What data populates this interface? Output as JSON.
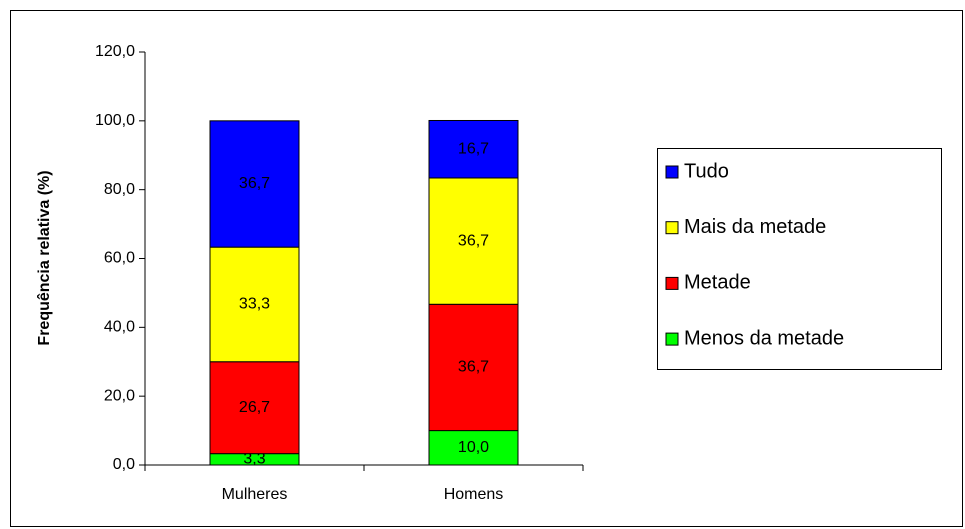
{
  "chart_data": {
    "type": "stacked_bar",
    "y_label": "Frequência relativa (%)",
    "categories": [
      "Mulheres",
      "Homens"
    ],
    "series": [
      {
        "name": "Menos da metade",
        "color": "#00ff00",
        "values": [
          3.3,
          10.0
        ],
        "value_labels": [
          "3,3",
          "10,0"
        ]
      },
      {
        "name": "Metade",
        "color": "#ff0000",
        "values": [
          26.7,
          36.7
        ],
        "value_labels": [
          "26,7",
          "36,7"
        ]
      },
      {
        "name": "Mais da metade",
        "color": "#ffff00",
        "values": [
          33.3,
          36.7
        ],
        "value_labels": [
          "33,3",
          "36,7"
        ]
      },
      {
        "name": "Tudo",
        "color": "#0000ff",
        "values": [
          36.7,
          16.7
        ],
        "value_labels": [
          "36,7",
          "16,7"
        ]
      }
    ],
    "ylim": [
      0,
      120
    ],
    "yticks": [
      {
        "value": 0,
        "label": "0,0"
      },
      {
        "value": 20,
        "label": "20,0"
      },
      {
        "value": 40,
        "label": "40,0"
      },
      {
        "value": 60,
        "label": "60,0"
      },
      {
        "value": 80,
        "label": "80,0"
      },
      {
        "value": 100,
        "label": "100,0"
      },
      {
        "value": 120,
        "label": "120,0"
      }
    ],
    "grid": false,
    "legend": "right"
  }
}
